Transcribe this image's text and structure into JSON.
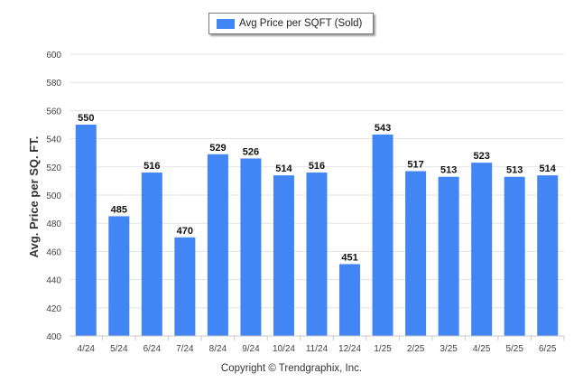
{
  "legend": {
    "label": "Avg Price per SQFT (Sold)",
    "color": "#4285f4"
  },
  "footer": {
    "copyright": "Copyright © Trendgraphix, Inc."
  },
  "chart_data": {
    "type": "bar",
    "title": "",
    "xlabel": "",
    "ylabel": "Avg. Price per SQ. FT.",
    "ylim": [
      400,
      600
    ],
    "yticks": [
      400,
      420,
      440,
      460,
      480,
      500,
      520,
      540,
      560,
      580,
      600
    ],
    "grid": true,
    "legend_position": "top",
    "categories": [
      "4/24",
      "5/24",
      "6/24",
      "7/24",
      "8/24",
      "9/24",
      "10/24",
      "11/24",
      "12/24",
      "1/25",
      "2/25",
      "3/25",
      "4/25",
      "5/25",
      "6/25"
    ],
    "series": [
      {
        "name": "Avg Price per SQFT (Sold)",
        "color": "#4285f4",
        "values": [
          550,
          485,
          516,
          470,
          529,
          526,
          514,
          516,
          451,
          543,
          517,
          513,
          523,
          513,
          514
        ]
      }
    ]
  }
}
